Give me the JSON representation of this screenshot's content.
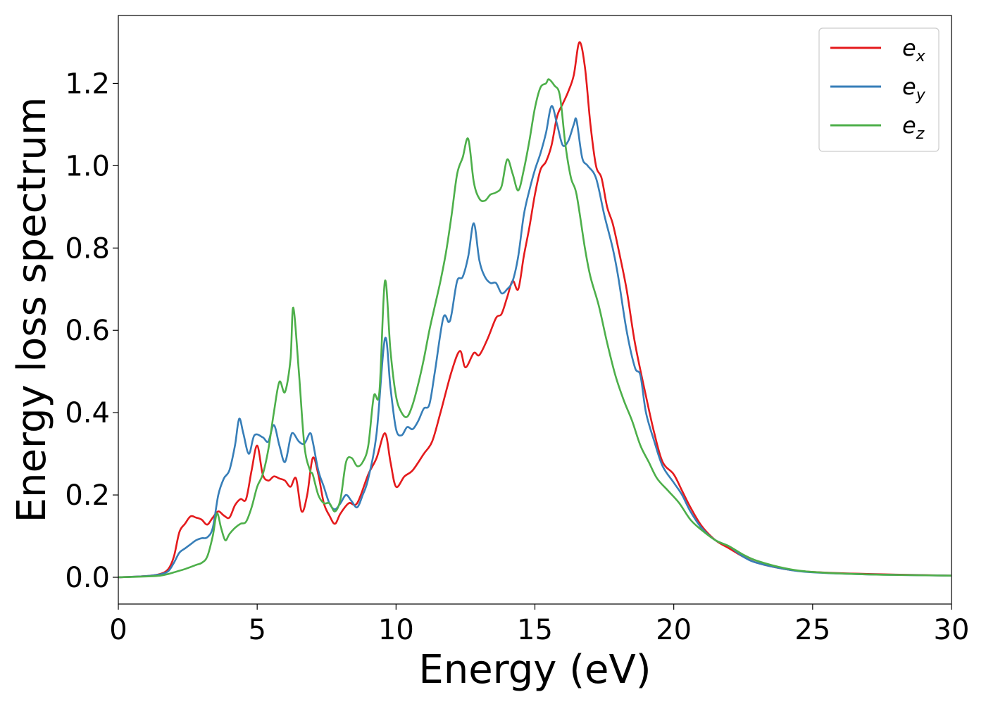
{
  "chart_data": {
    "type": "line",
    "title": "",
    "xlabel": "Energy (eV)",
    "ylabel": "Energy loss spectrum",
    "xlim": [
      0,
      30
    ],
    "ylim": [
      -0.065,
      1.365
    ],
    "xticks": [
      0,
      5,
      10,
      15,
      20,
      25,
      30
    ],
    "yticks": [
      0.0,
      0.2,
      0.4,
      0.6,
      0.8,
      1.0,
      1.2
    ],
    "xtick_labels": [
      "0",
      "5",
      "10",
      "15",
      "20",
      "25",
      "30"
    ],
    "ytick_labels": [
      "0.0",
      "0.2",
      "0.4",
      "0.6",
      "0.8",
      "1.0",
      "1.2"
    ],
    "grid": false,
    "legend_position": "top-right",
    "series": [
      {
        "name": "e",
        "subscript": "x",
        "color": "#e41a1c",
        "points": [
          [
            0,
            0
          ],
          [
            1,
            0.003
          ],
          [
            1.5,
            0.008
          ],
          [
            1.8,
            0.02
          ],
          [
            2.0,
            0.05
          ],
          [
            2.2,
            0.11
          ],
          [
            2.4,
            0.13
          ],
          [
            2.6,
            0.148
          ],
          [
            2.8,
            0.145
          ],
          [
            3.0,
            0.14
          ],
          [
            3.2,
            0.128
          ],
          [
            3.4,
            0.145
          ],
          [
            3.6,
            0.16
          ],
          [
            3.8,
            0.15
          ],
          [
            4.0,
            0.145
          ],
          [
            4.2,
            0.175
          ],
          [
            4.4,
            0.19
          ],
          [
            4.6,
            0.19
          ],
          [
            4.8,
            0.26
          ],
          [
            5.0,
            0.32
          ],
          [
            5.2,
            0.25
          ],
          [
            5.4,
            0.235
          ],
          [
            5.6,
            0.245
          ],
          [
            5.8,
            0.24
          ],
          [
            6.0,
            0.235
          ],
          [
            6.2,
            0.22
          ],
          [
            6.4,
            0.24
          ],
          [
            6.6,
            0.16
          ],
          [
            6.8,
            0.2
          ],
          [
            7.0,
            0.29
          ],
          [
            7.2,
            0.25
          ],
          [
            7.4,
            0.18
          ],
          [
            7.6,
            0.15
          ],
          [
            7.8,
            0.13
          ],
          [
            8.0,
            0.155
          ],
          [
            8.3,
            0.18
          ],
          [
            8.6,
            0.18
          ],
          [
            9.0,
            0.25
          ],
          [
            9.3,
            0.29
          ],
          [
            9.6,
            0.35
          ],
          [
            9.8,
            0.28
          ],
          [
            10.0,
            0.22
          ],
          [
            10.3,
            0.245
          ],
          [
            10.6,
            0.26
          ],
          [
            11.0,
            0.3
          ],
          [
            11.3,
            0.33
          ],
          [
            11.6,
            0.4
          ],
          [
            12.0,
            0.5
          ],
          [
            12.3,
            0.55
          ],
          [
            12.5,
            0.51
          ],
          [
            12.8,
            0.545
          ],
          [
            13.0,
            0.54
          ],
          [
            13.3,
            0.58
          ],
          [
            13.6,
            0.63
          ],
          [
            13.8,
            0.64
          ],
          [
            14.0,
            0.68
          ],
          [
            14.2,
            0.72
          ],
          [
            14.4,
            0.7
          ],
          [
            14.6,
            0.78
          ],
          [
            14.8,
            0.85
          ],
          [
            15.0,
            0.93
          ],
          [
            15.2,
            0.99
          ],
          [
            15.4,
            1.01
          ],
          [
            15.6,
            1.05
          ],
          [
            15.8,
            1.12
          ],
          [
            16.0,
            1.15
          ],
          [
            16.2,
            1.18
          ],
          [
            16.4,
            1.22
          ],
          [
            16.6,
            1.3
          ],
          [
            16.8,
            1.24
          ],
          [
            17.0,
            1.1
          ],
          [
            17.2,
            1.0
          ],
          [
            17.4,
            0.97
          ],
          [
            17.6,
            0.9
          ],
          [
            17.8,
            0.86
          ],
          [
            18.0,
            0.8
          ],
          [
            18.3,
            0.7
          ],
          [
            18.6,
            0.57
          ],
          [
            19.0,
            0.44
          ],
          [
            19.3,
            0.35
          ],
          [
            19.6,
            0.28
          ],
          [
            20.0,
            0.25
          ],
          [
            20.3,
            0.21
          ],
          [
            20.6,
            0.17
          ],
          [
            21.0,
            0.125
          ],
          [
            21.5,
            0.09
          ],
          [
            22.0,
            0.07
          ],
          [
            22.5,
            0.05
          ],
          [
            23.0,
            0.035
          ],
          [
            24.0,
            0.02
          ],
          [
            25.0,
            0.013
          ],
          [
            27.0,
            0.008
          ],
          [
            30.0,
            0.004
          ]
        ]
      },
      {
        "name": "e",
        "subscript": "y",
        "color": "#377eb8",
        "points": [
          [
            0,
            0
          ],
          [
            1,
            0.003
          ],
          [
            1.5,
            0.007
          ],
          [
            1.8,
            0.015
          ],
          [
            2.0,
            0.035
          ],
          [
            2.2,
            0.06
          ],
          [
            2.4,
            0.07
          ],
          [
            2.6,
            0.08
          ],
          [
            2.8,
            0.09
          ],
          [
            3.0,
            0.095
          ],
          [
            3.2,
            0.097
          ],
          [
            3.4,
            0.12
          ],
          [
            3.6,
            0.2
          ],
          [
            3.8,
            0.24
          ],
          [
            4.0,
            0.26
          ],
          [
            4.2,
            0.32
          ],
          [
            4.35,
            0.385
          ],
          [
            4.5,
            0.35
          ],
          [
            4.7,
            0.3
          ],
          [
            4.9,
            0.345
          ],
          [
            5.2,
            0.34
          ],
          [
            5.4,
            0.33
          ],
          [
            5.6,
            0.37
          ],
          [
            5.8,
            0.32
          ],
          [
            6.0,
            0.28
          ],
          [
            6.2,
            0.34
          ],
          [
            6.3,
            0.35
          ],
          [
            6.5,
            0.33
          ],
          [
            6.7,
            0.325
          ],
          [
            6.9,
            0.35
          ],
          [
            7.0,
            0.33
          ],
          [
            7.2,
            0.26
          ],
          [
            7.4,
            0.22
          ],
          [
            7.6,
            0.18
          ],
          [
            7.8,
            0.165
          ],
          [
            8.0,
            0.18
          ],
          [
            8.2,
            0.2
          ],
          [
            8.4,
            0.185
          ],
          [
            8.6,
            0.17
          ],
          [
            8.8,
            0.2
          ],
          [
            9.0,
            0.24
          ],
          [
            9.3,
            0.35
          ],
          [
            9.6,
            0.58
          ],
          [
            9.8,
            0.46
          ],
          [
            10.0,
            0.36
          ],
          [
            10.2,
            0.345
          ],
          [
            10.4,
            0.365
          ],
          [
            10.6,
            0.36
          ],
          [
            10.8,
            0.38
          ],
          [
            11.0,
            0.41
          ],
          [
            11.2,
            0.42
          ],
          [
            11.4,
            0.5
          ],
          [
            11.7,
            0.63
          ],
          [
            11.9,
            0.62
          ],
          [
            12.0,
            0.64
          ],
          [
            12.2,
            0.72
          ],
          [
            12.4,
            0.73
          ],
          [
            12.6,
            0.78
          ],
          [
            12.8,
            0.86
          ],
          [
            13.0,
            0.77
          ],
          [
            13.2,
            0.73
          ],
          [
            13.4,
            0.715
          ],
          [
            13.6,
            0.715
          ],
          [
            13.8,
            0.69
          ],
          [
            14.0,
            0.7
          ],
          [
            14.2,
            0.72
          ],
          [
            14.4,
            0.78
          ],
          [
            14.6,
            0.88
          ],
          [
            14.8,
            0.94
          ],
          [
            15.0,
            0.99
          ],
          [
            15.2,
            1.03
          ],
          [
            15.4,
            1.08
          ],
          [
            15.6,
            1.145
          ],
          [
            15.8,
            1.1
          ],
          [
            16.0,
            1.05
          ],
          [
            16.2,
            1.06
          ],
          [
            16.4,
            1.1
          ],
          [
            16.5,
            1.11
          ],
          [
            16.7,
            1.02
          ],
          [
            16.9,
            1.0
          ],
          [
            17.2,
            0.97
          ],
          [
            17.5,
            0.88
          ],
          [
            17.8,
            0.8
          ],
          [
            18.0,
            0.73
          ],
          [
            18.3,
            0.6
          ],
          [
            18.6,
            0.51
          ],
          [
            18.8,
            0.49
          ],
          [
            19.0,
            0.4
          ],
          [
            19.3,
            0.33
          ],
          [
            19.6,
            0.27
          ],
          [
            20.0,
            0.23
          ],
          [
            20.3,
            0.2
          ],
          [
            20.6,
            0.16
          ],
          [
            21.0,
            0.12
          ],
          [
            21.5,
            0.09
          ],
          [
            22.0,
            0.075
          ],
          [
            22.5,
            0.05
          ],
          [
            23.0,
            0.035
          ],
          [
            24.0,
            0.02
          ],
          [
            25.0,
            0.012
          ],
          [
            27.0,
            0.007
          ],
          [
            30.0,
            0.004
          ]
        ]
      },
      {
        "name": "e",
        "subscript": "z",
        "color": "#4daf4a",
        "points": [
          [
            0,
            0
          ],
          [
            1,
            0.002
          ],
          [
            1.5,
            0.004
          ],
          [
            1.8,
            0.008
          ],
          [
            2.0,
            0.012
          ],
          [
            2.4,
            0.02
          ],
          [
            2.8,
            0.03
          ],
          [
            3.0,
            0.035
          ],
          [
            3.2,
            0.05
          ],
          [
            3.4,
            0.1
          ],
          [
            3.55,
            0.155
          ],
          [
            3.7,
            0.12
          ],
          [
            3.85,
            0.09
          ],
          [
            4.0,
            0.105
          ],
          [
            4.2,
            0.12
          ],
          [
            4.4,
            0.13
          ],
          [
            4.6,
            0.135
          ],
          [
            4.8,
            0.17
          ],
          [
            5.0,
            0.22
          ],
          [
            5.2,
            0.25
          ],
          [
            5.4,
            0.31
          ],
          [
            5.6,
            0.4
          ],
          [
            5.8,
            0.475
          ],
          [
            6.0,
            0.45
          ],
          [
            6.2,
            0.53
          ],
          [
            6.3,
            0.655
          ],
          [
            6.5,
            0.5
          ],
          [
            6.7,
            0.32
          ],
          [
            6.9,
            0.26
          ],
          [
            7.0,
            0.25
          ],
          [
            7.2,
            0.2
          ],
          [
            7.4,
            0.18
          ],
          [
            7.6,
            0.18
          ],
          [
            7.8,
            0.16
          ],
          [
            8.0,
            0.19
          ],
          [
            8.2,
            0.28
          ],
          [
            8.4,
            0.29
          ],
          [
            8.6,
            0.27
          ],
          [
            8.8,
            0.28
          ],
          [
            9.0,
            0.32
          ],
          [
            9.2,
            0.44
          ],
          [
            9.4,
            0.45
          ],
          [
            9.6,
            0.72
          ],
          [
            9.8,
            0.55
          ],
          [
            10.0,
            0.44
          ],
          [
            10.2,
            0.4
          ],
          [
            10.4,
            0.39
          ],
          [
            10.6,
            0.42
          ],
          [
            10.8,
            0.47
          ],
          [
            11.0,
            0.53
          ],
          [
            11.2,
            0.6
          ],
          [
            11.4,
            0.66
          ],
          [
            11.6,
            0.72
          ],
          [
            11.8,
            0.79
          ],
          [
            12.0,
            0.88
          ],
          [
            12.2,
            0.98
          ],
          [
            12.4,
            1.02
          ],
          [
            12.6,
            1.065
          ],
          [
            12.8,
            0.96
          ],
          [
            13.0,
            0.92
          ],
          [
            13.2,
            0.915
          ],
          [
            13.4,
            0.93
          ],
          [
            13.6,
            0.935
          ],
          [
            13.8,
            0.95
          ],
          [
            14.0,
            1.015
          ],
          [
            14.2,
            0.98
          ],
          [
            14.4,
            0.94
          ],
          [
            14.6,
            0.99
          ],
          [
            14.8,
            1.06
          ],
          [
            15.0,
            1.14
          ],
          [
            15.2,
            1.19
          ],
          [
            15.4,
            1.2
          ],
          [
            15.5,
            1.21
          ],
          [
            15.7,
            1.195
          ],
          [
            15.9,
            1.17
          ],
          [
            16.1,
            1.05
          ],
          [
            16.3,
            0.97
          ],
          [
            16.5,
            0.93
          ],
          [
            16.8,
            0.8
          ],
          [
            17.0,
            0.73
          ],
          [
            17.3,
            0.66
          ],
          [
            17.6,
            0.57
          ],
          [
            17.9,
            0.49
          ],
          [
            18.2,
            0.43
          ],
          [
            18.5,
            0.38
          ],
          [
            18.8,
            0.32
          ],
          [
            19.1,
            0.28
          ],
          [
            19.4,
            0.24
          ],
          [
            19.8,
            0.21
          ],
          [
            20.2,
            0.18
          ],
          [
            20.6,
            0.14
          ],
          [
            21.0,
            0.115
          ],
          [
            21.5,
            0.09
          ],
          [
            22.0,
            0.075
          ],
          [
            22.5,
            0.055
          ],
          [
            23.0,
            0.04
          ],
          [
            24.0,
            0.022
          ],
          [
            25.0,
            0.013
          ],
          [
            27.0,
            0.007
          ],
          [
            30.0,
            0.004
          ]
        ]
      }
    ]
  }
}
